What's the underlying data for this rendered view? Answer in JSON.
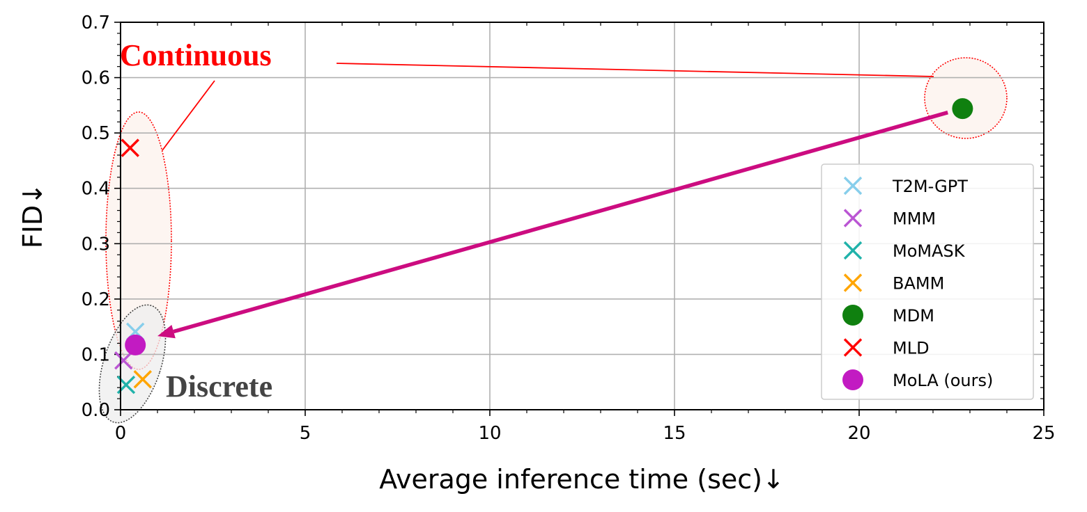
{
  "chart_data": {
    "type": "scatter",
    "xlabel": "Average inference time (sec)↓",
    "ylabel": "FID↓",
    "xlim": [
      0,
      25
    ],
    "ylim": [
      0,
      0.7
    ],
    "xticks": [
      "0",
      "5",
      "10",
      "15",
      "20",
      "25"
    ],
    "yticks": [
      "0.0",
      "0.1",
      "0.2",
      "0.3",
      "0.4",
      "0.5",
      "0.6",
      "0.7"
    ],
    "grid": true,
    "legend_position": "lower-right",
    "series": [
      {
        "name": "T2M-GPT",
        "marker": "x",
        "color": "#87CEEB",
        "x": 0.4,
        "y": 0.141
      },
      {
        "name": "MMM",
        "marker": "x",
        "color": "#BA55D3",
        "x": 0.08,
        "y": 0.089
      },
      {
        "name": "MoMASK",
        "marker": "x",
        "color": "#20B2AA",
        "x": 0.15,
        "y": 0.045
      },
      {
        "name": "BAMM",
        "marker": "x",
        "color": "#FFA500",
        "x": 0.6,
        "y": 0.055
      },
      {
        "name": "MDM",
        "marker": "o",
        "color": "#0F800F",
        "x": 22.8,
        "y": 0.544
      },
      {
        "name": "MLD",
        "marker": "x",
        "color": "#FF0000",
        "x": 0.26,
        "y": 0.473
      },
      {
        "name": "MoLA (ours)",
        "marker": "o",
        "color": "#C21BC2",
        "x": 0.4,
        "y": 0.117
      }
    ],
    "annotations": [
      {
        "text": "Continuous",
        "color": "#FF0000"
      },
      {
        "text": "Discrete",
        "color": "#444444"
      }
    ],
    "arrow": {
      "from": [
        22.4,
        0.537
      ],
      "to": [
        1.0,
        0.133
      ],
      "color": "#CC0C80"
    }
  }
}
